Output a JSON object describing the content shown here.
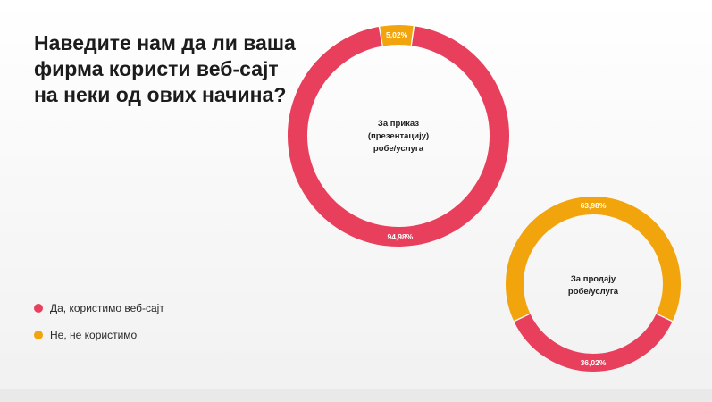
{
  "title": "Наведите нам да ли ваша фирма користи веб-сајт на неки од ових начина?",
  "legend": [
    {
      "label": "Да, користимо веб-сајт",
      "color": "#e8405c"
    },
    {
      "label": "Не, не користимо",
      "color": "#f2a40d"
    }
  ],
  "chart_data": [
    {
      "type": "pie",
      "donut": true,
      "center_label": [
        "За приказ",
        "(презентацију)",
        "робе/услуга"
      ],
      "categories": [
        "Да, користимо веб-сајт",
        "Не, не користимо"
      ],
      "values": [
        94.98,
        5.02
      ],
      "data_labels": [
        "94,98%",
        "5,02%"
      ],
      "colors": [
        "#e8405c",
        "#f2a40d"
      ]
    },
    {
      "type": "pie",
      "donut": true,
      "center_label": [
        "За продају",
        "робе/услуга"
      ],
      "categories": [
        "Да, користимо веб-сајт",
        "Не, не користимо"
      ],
      "values": [
        36.02,
        63.98
      ],
      "data_labels": [
        "36,02%",
        "63,98%"
      ],
      "colors": [
        "#e8405c",
        "#f2a40d"
      ]
    }
  ]
}
